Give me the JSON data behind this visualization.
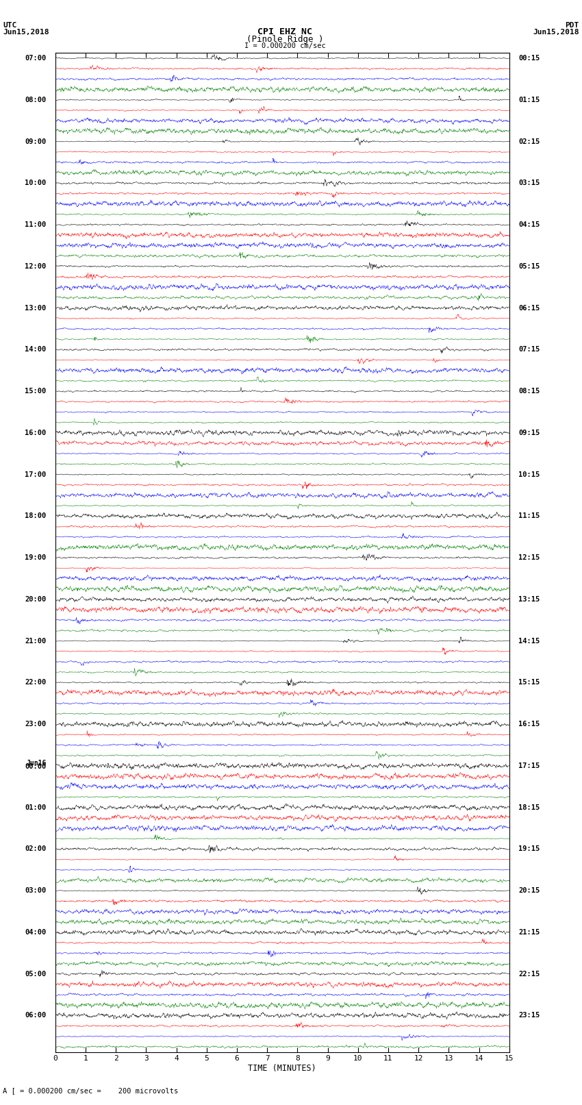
{
  "title_line1": "CPI EHZ NC",
  "title_line2": "(Pinole Ridge )",
  "scale_text": "I = 0.000200 cm/sec",
  "bottom_text": "A [ = 0.000200 cm/sec =    200 microvolts",
  "utc_label": "UTC\nJun15,2018",
  "pdt_label": "PDT\nJun15,2018",
  "xlabel": "TIME (MINUTES)",
  "x_ticks": [
    0,
    1,
    2,
    3,
    4,
    5,
    6,
    7,
    8,
    9,
    10,
    11,
    12,
    13,
    14,
    15
  ],
  "left_times": [
    "07:00",
    "08:00",
    "09:00",
    "10:00",
    "11:00",
    "12:00",
    "13:00",
    "14:00",
    "15:00",
    "16:00",
    "17:00",
    "18:00",
    "19:00",
    "20:00",
    "21:00",
    "22:00",
    "23:00",
    "Jun16\n00:00",
    "01:00",
    "02:00",
    "03:00",
    "04:00",
    "05:00",
    "06:00"
  ],
  "right_times": [
    "00:15",
    "01:15",
    "02:15",
    "03:15",
    "04:15",
    "05:15",
    "06:15",
    "07:15",
    "08:15",
    "09:15",
    "10:15",
    "11:15",
    "12:15",
    "13:15",
    "14:15",
    "15:15",
    "16:15",
    "17:15",
    "18:15",
    "19:15",
    "20:15",
    "21:15",
    "22:15",
    "23:15"
  ],
  "colors": [
    "black",
    "red",
    "blue",
    "green"
  ],
  "n_hours": 24,
  "traces_per_hour": 4,
  "bg_color": "white",
  "fig_width": 8.5,
  "fig_height": 16.13,
  "dpi": 100
}
